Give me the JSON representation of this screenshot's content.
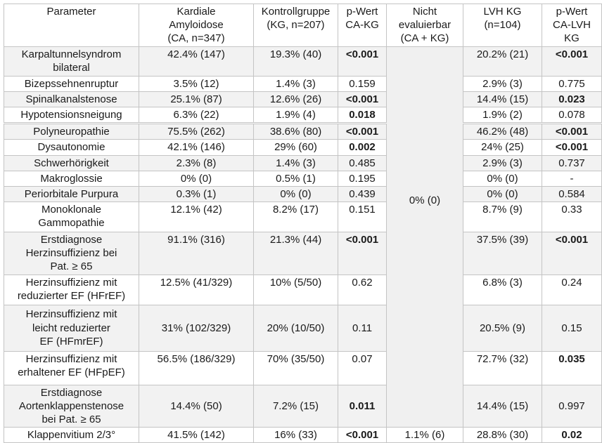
{
  "table": {
    "columns": [
      {
        "label": "Parameter"
      },
      {
        "label": "Kardiale\nAmyloidose\n(CA, n=347)"
      },
      {
        "label": "Kontrollgruppe\n(KG, n=207)"
      },
      {
        "label": "p-Wert\nCA-KG"
      },
      {
        "label": "Nicht\nevaluierbar\n(CA + KG)"
      },
      {
        "label": "LVH KG\n(n=104)"
      },
      {
        "label": "p-Wert\nCA-LVH KG"
      }
    ],
    "merged_cell": {
      "value": "0% (0)",
      "rowspan": 15
    },
    "rows": [
      {
        "parameter": "Karpaltunnelsyndrom\nbilateral",
        "ca": "42.4% (147)",
        "kg": "19.3% (40)",
        "p_ca_kg": "<0.001",
        "p_ca_kg_bold": true,
        "lvh": "20.2% (21)",
        "p_ca_lvh": "<0.001",
        "p_ca_lvh_bold": true
      },
      {
        "parameter": "Bizepssehnenruptur",
        "ca": "3.5% (12)",
        "kg": "1.4% (3)",
        "p_ca_kg": "0.159",
        "p_ca_kg_bold": false,
        "lvh": "2.9% (3)",
        "p_ca_lvh": "0.775",
        "p_ca_lvh_bold": false
      },
      {
        "parameter": "Spinalkanalstenose",
        "ca": "25.1% (87)",
        "kg": "12.6% (26)",
        "p_ca_kg": "<0.001",
        "p_ca_kg_bold": true,
        "lvh": "14.4% (15)",
        "p_ca_lvh": "0.023",
        "p_ca_lvh_bold": true
      },
      {
        "parameter": "Hypotensionsneigung",
        "ca": "6.3% (22)",
        "kg": "1.9% (4)",
        "p_ca_kg": "0.018",
        "p_ca_kg_bold": true,
        "lvh": "1.9% (2)",
        "p_ca_lvh": "0.078",
        "p_ca_lvh_bold": false
      },
      {
        "parameter": "Polyneuropathie",
        "ca": "75.5% (262)",
        "kg": "38.6% (80)",
        "p_ca_kg": "<0.001",
        "p_ca_kg_bold": true,
        "lvh": "46.2% (48)",
        "p_ca_lvh": "<0.001",
        "p_ca_lvh_bold": true
      },
      {
        "parameter": "Dysautonomie",
        "ca": "42.1% (146)",
        "kg": "29% (60)",
        "p_ca_kg": "0.002",
        "p_ca_kg_bold": true,
        "lvh": "24% (25)",
        "p_ca_lvh": "<0.001",
        "p_ca_lvh_bold": true
      },
      {
        "parameter": "Schwerhörigkeit",
        "ca": "2.3% (8)",
        "kg": "1.4% (3)",
        "p_ca_kg": "0.485",
        "p_ca_kg_bold": false,
        "lvh": "2.9% (3)",
        "p_ca_lvh": "0.737",
        "p_ca_lvh_bold": false
      },
      {
        "parameter": "Makroglossie",
        "ca": "0% (0)",
        "kg": "0.5% (1)",
        "p_ca_kg": "0.195",
        "p_ca_kg_bold": false,
        "lvh": "0% (0)",
        "p_ca_lvh": "-",
        "p_ca_lvh_bold": false
      },
      {
        "parameter": "Periorbitale Purpura",
        "ca": "0.3% (1)",
        "kg": "0% (0)",
        "p_ca_kg": "0.439",
        "p_ca_kg_bold": false,
        "lvh": "0% (0)",
        "p_ca_lvh": "0.584",
        "p_ca_lvh_bold": false
      },
      {
        "parameter": "Monoklonale\nGammopathie",
        "ca": "12.1% (42)",
        "kg": "8.2% (17)",
        "p_ca_kg": "0.151",
        "p_ca_kg_bold": false,
        "lvh": "8.7% (9)",
        "p_ca_lvh": "0.33",
        "p_ca_lvh_bold": false
      },
      {
        "parameter": "Erstdiagnose\nHerzinsuffizienz bei\nPat. ≥ 65",
        "ca": "91.1% (316)",
        "kg": "21.3% (44)",
        "p_ca_kg": "<0.001",
        "p_ca_kg_bold": true,
        "lvh": "37.5% (39)",
        "p_ca_lvh": "<0.001",
        "p_ca_lvh_bold": true
      },
      {
        "parameter": "Herzinsuffizienz mit\nreduzierter EF (HFrEF)",
        "ca": "12.5% (41/329)",
        "kg": "10% (5/50)",
        "p_ca_kg": "0.62",
        "p_ca_kg_bold": false,
        "lvh": "6.8% (3)",
        "p_ca_lvh": "0.24",
        "p_ca_lvh_bold": false
      },
      {
        "parameter": "Herzinsuffizienz mit\nleicht reduzierter\nEF (HFmrEF)",
        "ca": "31% (102/329)",
        "kg": "20% (10/50)",
        "p_ca_kg": "0.11",
        "p_ca_kg_bold": false,
        "lvh": "20.5% (9)",
        "p_ca_lvh": "0.15",
        "p_ca_lvh_bold": false
      },
      {
        "parameter": "Herzinsuffizienz mit\nerhaltener EF (HFpEF)",
        "ca": "56.5% (186/329)",
        "kg": "70% (35/50)",
        "p_ca_kg": "0.07",
        "p_ca_kg_bold": false,
        "lvh": "72.7% (32)",
        "p_ca_lvh": "0.035",
        "p_ca_lvh_bold": true
      },
      {
        "parameter": "Erstdiagnose\nAortenklappenstenose\nbei Pat. ≥ 65",
        "ca": "14.4% (50)",
        "kg": "7.2% (15)",
        "p_ca_kg": "0.011",
        "p_ca_kg_bold": true,
        "lvh": "14.4% (15)",
        "p_ca_lvh": "0.997",
        "p_ca_lvh_bold": false
      },
      {
        "parameter": "Klappenvitium 2/3°",
        "ca": "41.5% (142)",
        "kg": "16% (33)",
        "p_ca_kg": "<0.001",
        "p_ca_kg_bold": true,
        "nicht_evaluierbar": "1.1% (6)",
        "lvh": "28.8% (30)",
        "p_ca_lvh": "0.02",
        "p_ca_lvh_bold": true
      }
    ],
    "colors": {
      "row_shade": "#f2f2f2",
      "border": "#c4c4c4",
      "text": "#1a1a1a"
    }
  }
}
